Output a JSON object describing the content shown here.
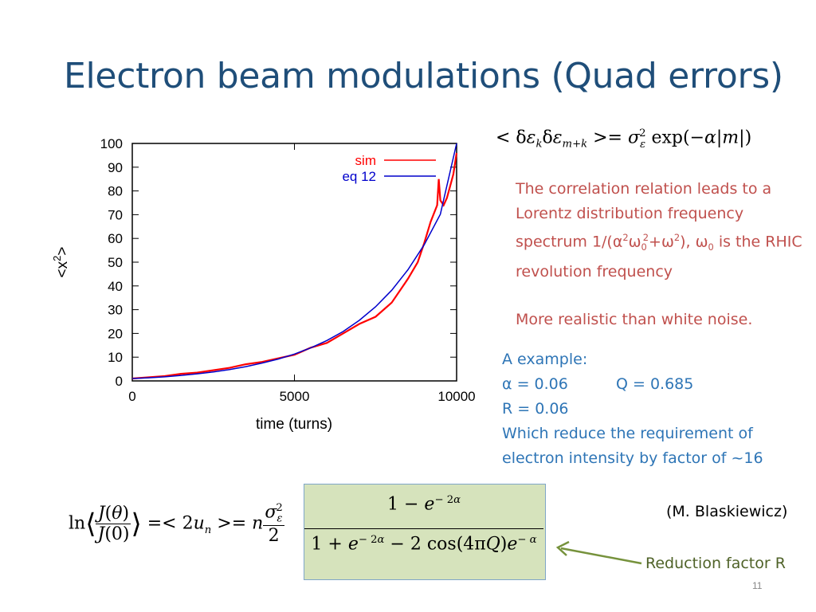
{
  "slide": {
    "title": "Electron beam modulations (Quad errors)",
    "page_number": "11",
    "attribution": "(M. Blaskiewicz)",
    "reduction_label": "Reduction factor R"
  },
  "text_block_red": {
    "p1_a": "The correlation relation leads to a Lorentz distribution frequency spectrum 1/(α",
    "p1_b": "ω",
    "p1_c": "0",
    "p1_d": "2",
    "p1_e": "+ω",
    "p1_f": "2",
    "p1_g": "), ω",
    "p1_h": "0",
    "p1_i": " is the RHIC revolution frequency",
    "p1_sup2": "2",
    "p2": "More realistic than white noise."
  },
  "text_block_blue": {
    "line1": "A example:",
    "line2a": "α = 0.06",
    "line2b": "Q = 0.685",
    "line3": "R = 0.06",
    "line4": "Which reduce the requirement of electron intensity by factor of ~16"
  },
  "colors": {
    "title": "#1f4e79",
    "sim": "#ff0000",
    "eq12": "#0000cc",
    "red_text": "#c0504d",
    "blue_text": "#2e75b6",
    "green_box": "#d6e3bc",
    "arrow": "#76923c"
  },
  "chart_data": {
    "type": "line",
    "xlabel": "time (turns)",
    "ylabel": "<x²>",
    "xlim": [
      0,
      10000
    ],
    "ylim": [
      0,
      100
    ],
    "x_ticks": [
      0,
      5000,
      10000
    ],
    "y_ticks": [
      0,
      10,
      20,
      30,
      40,
      50,
      60,
      70,
      80,
      90,
      100
    ],
    "legend_position": "top-right",
    "series": [
      {
        "name": "sim",
        "x": [
          0,
          500,
          1000,
          1500,
          2000,
          2500,
          3000,
          3500,
          4000,
          4500,
          5000,
          5500,
          6000,
          6500,
          7000,
          7500,
          8000,
          8500,
          8800,
          9000,
          9200,
          9400,
          9450,
          9500,
          9600,
          9700,
          9800,
          9900,
          10000
        ],
        "y": [
          1,
          1.5,
          2,
          3,
          3.5,
          4.5,
          5.5,
          7,
          8,
          9.5,
          11,
          14,
          16,
          20,
          24,
          27,
          33,
          43,
          50,
          58,
          67,
          74,
          85,
          76,
          74,
          77,
          82,
          87,
          96
        ]
      },
      {
        "name": "eq 12",
        "x": [
          0,
          500,
          1000,
          1500,
          2000,
          2500,
          3000,
          3500,
          4000,
          4500,
          5000,
          5500,
          6000,
          6500,
          7000,
          7500,
          8000,
          8500,
          9000,
          9500,
          10000
        ],
        "y": [
          1,
          1.3,
          1.7,
          2.3,
          3,
          3.8,
          4.8,
          6,
          7.5,
          9.2,
          11.3,
          13.9,
          17,
          20.8,
          25.5,
          31.2,
          38.2,
          46.8,
          57.3,
          70.2,
          100
        ]
      }
    ]
  },
  "equations": {
    "correlation": "< δε_k δε_{m+k} >= σ_ε² exp(−α|m|)",
    "main": "ln< J(θ)/J(0) > = < 2u_n > = n σ_ε²/2 · (1 − e^{−2α}) / (1 + e^{−2α} − 2cos(4πQ)e^{−α})"
  }
}
